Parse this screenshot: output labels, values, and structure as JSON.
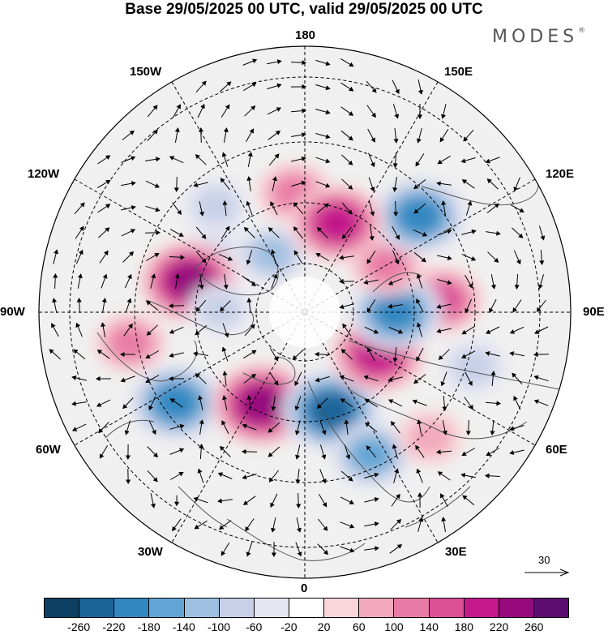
{
  "title": "Base 29/05/2025 00 UTC, valid 29/05/2025 00 UTC",
  "brand": "MODES",
  "brand_mark": "®",
  "lon_labels": {
    "top": "180",
    "top_left": "150W",
    "top_right": "150E",
    "upper_left": "120W",
    "upper_right": "120E",
    "left": "90W",
    "right": "90E",
    "lower_left": "60W",
    "lower_right": "60E",
    "bottom_left": "30W",
    "bottom_right": "30E",
    "bottom": "0"
  },
  "wind_scale": {
    "value": "30"
  },
  "colorbar": {
    "ticks": [
      "-260",
      "-220",
      "-180",
      "-140",
      "-100",
      "-60",
      "-20",
      "20",
      "60",
      "100",
      "140",
      "180",
      "220",
      "260"
    ],
    "colors": [
      "#0d3f63",
      "#1a6497",
      "#3387c1",
      "#62a5d4",
      "#9ebfe0",
      "#c7d0e8",
      "#e6e6f2",
      "#ffffff",
      "#f9d6d9",
      "#f2a9bd",
      "#e87aa6",
      "#db4f97",
      "#c3198a",
      "#960a7e",
      "#5a0d6e"
    ]
  },
  "map": {
    "projection": "north-polar-stereographic",
    "anomalies": [
      {
        "lon": -175,
        "lat": 55,
        "value": 120
      },
      {
        "lon": -140,
        "lat": 50,
        "value": -80
      },
      {
        "lon": -150,
        "lat": 70,
        "value": -100
      },
      {
        "lon": -120,
        "lat": 58,
        "value": -90
      },
      {
        "lon": -105,
        "lat": 55,
        "value": 230
      },
      {
        "lon": -92,
        "lat": 65,
        "value": -70
      },
      {
        "lon": -80,
        "lat": 40,
        "value": 110
      },
      {
        "lon": -55,
        "lat": 45,
        "value": -200
      },
      {
        "lon": -25,
        "lat": 60,
        "value": 240
      },
      {
        "lon": 15,
        "lat": 60,
        "value": -230
      },
      {
        "lon": 25,
        "lat": 45,
        "value": -140
      },
      {
        "lon": 60,
        "lat": 65,
        "value": 210
      },
      {
        "lon": 72,
        "lat": 40,
        "value": -80
      },
      {
        "lon": 95,
        "lat": 50,
        "value": 150
      },
      {
        "lon": 90,
        "lat": 63,
        "value": -200
      },
      {
        "lon": 120,
        "lat": 62,
        "value": 120
      },
      {
        "lon": 130,
        "lat": 47,
        "value": -200
      },
      {
        "lon": 160,
        "lat": 62,
        "value": 210
      },
      {
        "lon": 45,
        "lat": 40,
        "value": 80
      }
    ]
  }
}
